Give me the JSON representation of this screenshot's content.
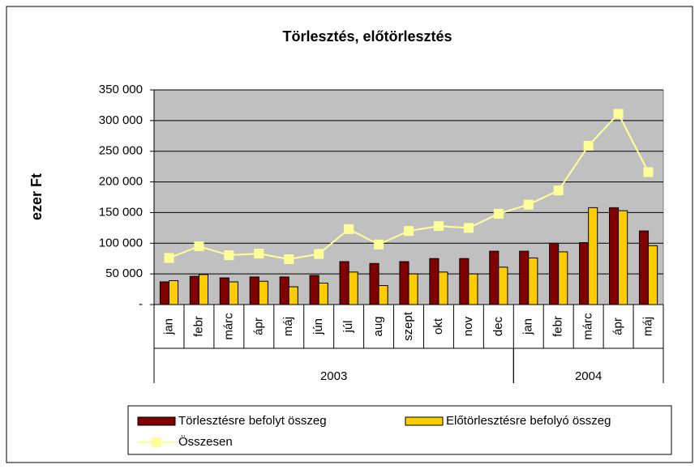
{
  "chart_data": {
    "type": "bar",
    "title": "Törlesztés, előtörlesztés",
    "y_label": "ezer Ft",
    "categories": [
      "jan",
      "febr",
      "márc",
      "ápr",
      "máj",
      "jún",
      "júl",
      "aug",
      "szept",
      "okt",
      "nov",
      "dec",
      "jan",
      "febr",
      "márc",
      "ápr",
      "máj"
    ],
    "x_groups": [
      {
        "label": "2003",
        "count": 12
      },
      {
        "label": "2004",
        "count": 5
      }
    ],
    "series": [
      {
        "name": "Törlesztésre befolyt összeg",
        "type": "bar",
        "color": "#800000",
        "values": [
          37000,
          46000,
          43500,
          45000,
          45000,
          47500,
          70000,
          67000,
          70000,
          75000,
          75000,
          87000,
          87000,
          100000,
          101000,
          158000,
          120000
        ]
      },
      {
        "name": "Előtörlesztésre befolyó összeg",
        "type": "bar",
        "color": "#FFCC00",
        "values": [
          39000,
          49000,
          37000,
          38000,
          29000,
          35000,
          53000,
          31000,
          50000,
          53000,
          50000,
          61000,
          76000,
          86000,
          158000,
          153000,
          96000
        ]
      },
      {
        "name": "Összesen",
        "type": "line",
        "color": "#FFFF99",
        "values": [
          76000,
          95000,
          80500,
          83000,
          74000,
          82500,
          123000,
          98000,
          120000,
          128000,
          125000,
          148000,
          163000,
          186000,
          259000,
          311000,
          216000
        ]
      }
    ],
    "ylim": [
      0,
      350000
    ],
    "yticks": [
      {
        "value": 0,
        "label": "-"
      },
      {
        "value": 50000,
        "label": "50 000"
      },
      {
        "value": 100000,
        "label": "100 000"
      },
      {
        "value": 150000,
        "label": "150 000"
      },
      {
        "value": 200000,
        "label": "200 000"
      },
      {
        "value": 250000,
        "label": "250 000"
      },
      {
        "value": 300000,
        "label": "300 000"
      },
      {
        "value": 350000,
        "label": "350 000"
      }
    ],
    "grid": true,
    "plot_background": "#C0C0C0",
    "legend": "bottom"
  }
}
